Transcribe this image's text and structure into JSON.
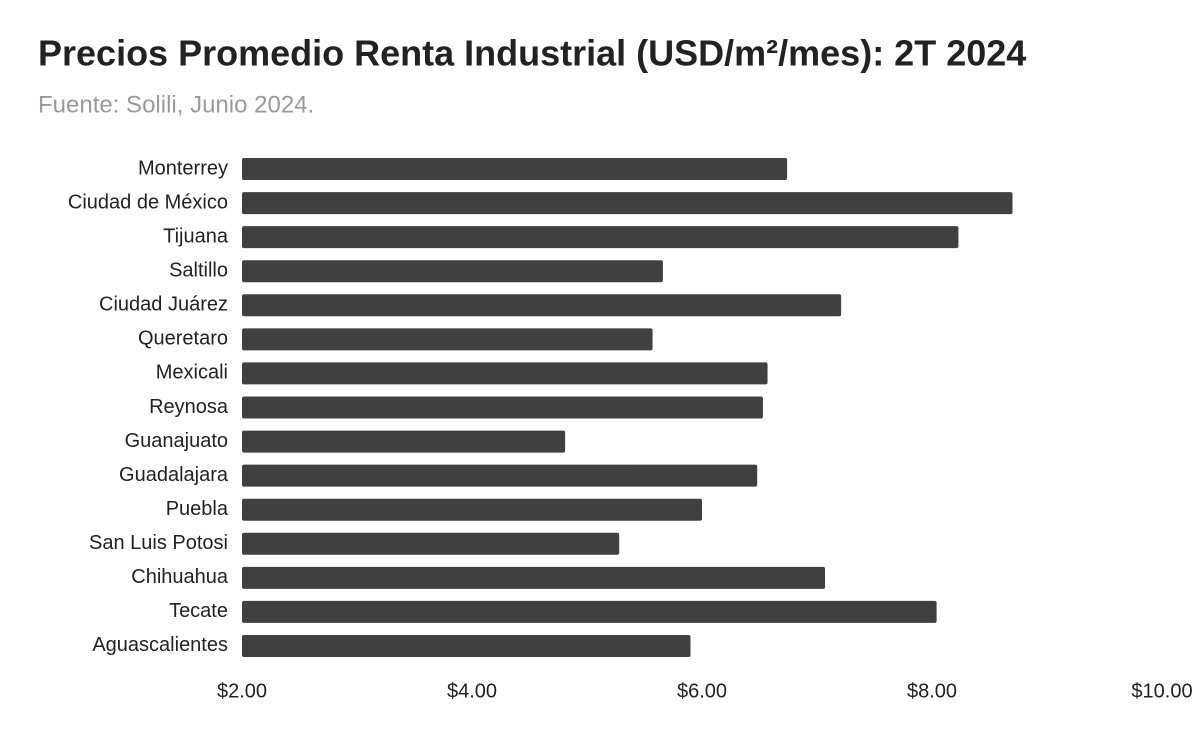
{
  "chart_data": {
    "type": "hbar",
    "title": "Precios Promedio Renta Industrial (USD/m²/mes): 2T 2024",
    "subtitle": "Fuente: Solili, Junio 2024.",
    "categories": [
      "Monterrey",
      "Ciudad de México",
      "Tijuana",
      "Saltillo",
      "Ciudad Juárez",
      "Queretaro",
      "Mexicali",
      "Reynosa",
      "Guanajuato",
      "Guadalajara",
      "Puebla",
      "San Luis Potosi",
      "Chihuahua",
      "Tecate",
      "Aguascalientes"
    ],
    "values": [
      6.74,
      8.7,
      8.23,
      5.66,
      7.21,
      5.57,
      6.57,
      6.53,
      4.81,
      6.48,
      6.0,
      5.28,
      7.07,
      8.04,
      5.9
    ],
    "color": "#404040",
    "xlim": [
      2,
      10
    ],
    "xticks": [
      {
        "value": 2,
        "label": "$2.00"
      },
      {
        "value": 4,
        "label": "$4.00"
      },
      {
        "value": 6,
        "label": "$6.00"
      },
      {
        "value": 8,
        "label": "$8.00"
      },
      {
        "value": 10,
        "label": "$10.00"
      }
    ],
    "grid": false
  }
}
